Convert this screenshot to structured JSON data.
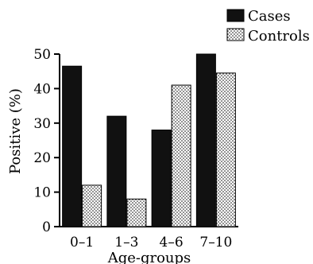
{
  "chart_data": {
    "type": "bar",
    "xlabel": "Age-groups",
    "ylabel": "Positive (%)",
    "categories": [
      "0–1",
      "1–3",
      "4–6",
      "7–10"
    ],
    "series": [
      {
        "name": "Cases",
        "values": [
          46.5,
          32,
          28,
          50
        ],
        "color": "#111111",
        "pattern": "solid"
      },
      {
        "name": "Controls",
        "values": [
          12,
          8,
          41,
          44.5
        ],
        "color": "#ffffff",
        "pattern": "dotted"
      }
    ],
    "yticks": [
      0,
      10,
      20,
      30,
      40,
      50
    ],
    "ylim": [
      0,
      50
    ],
    "legend_position": "top-right",
    "grid": false
  }
}
